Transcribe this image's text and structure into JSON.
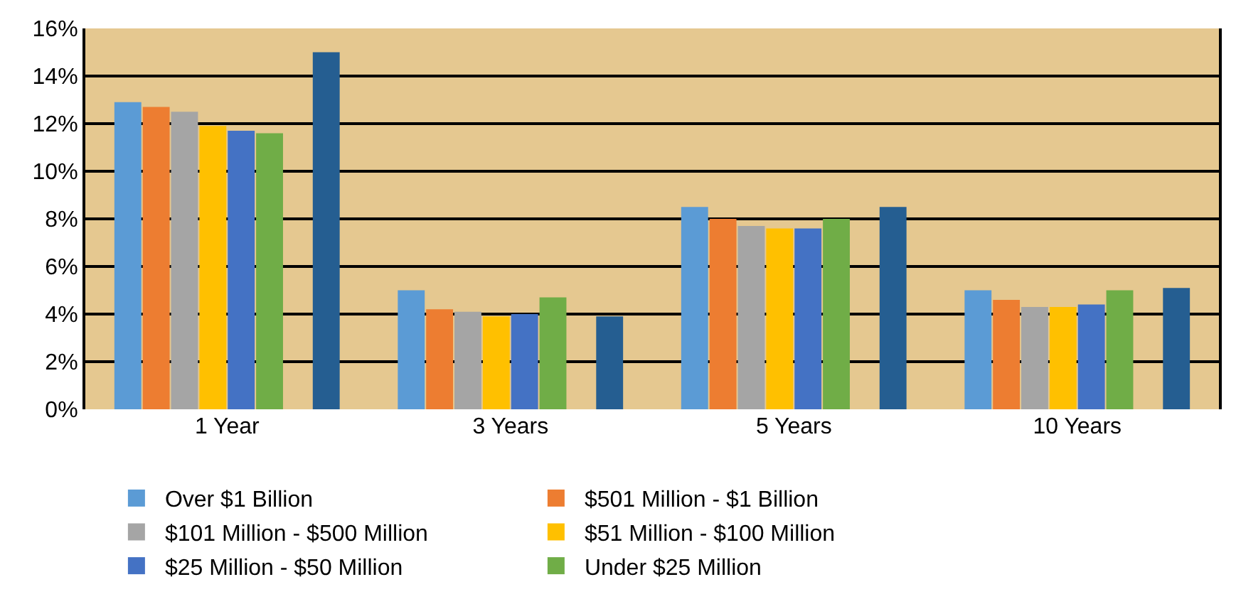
{
  "chart_data": {
    "type": "bar",
    "categories": [
      "1 Year",
      "3 Years",
      "5 Years",
      "10 Years"
    ],
    "series": [
      {
        "name": "Over $1 Billion",
        "color": "#5b9bd5",
        "values": [
          12.9,
          5.0,
          8.5,
          5.0
        ]
      },
      {
        "name": "$501 Million - $1 Billion",
        "color": "#ed7d31",
        "values": [
          12.7,
          4.2,
          8.0,
          4.6
        ]
      },
      {
        "name": "$101 Million - $500 Million",
        "color": "#a5a5a5",
        "values": [
          12.5,
          4.1,
          7.7,
          4.3
        ]
      },
      {
        "name": "$51 Million - $100 Million",
        "color": "#ffc000",
        "values": [
          11.9,
          3.9,
          7.6,
          4.3
        ]
      },
      {
        "name": "$25 Million - $50 Million",
        "color": "#4472c4",
        "values": [
          11.7,
          4.0,
          7.6,
          4.4
        ]
      },
      {
        "name": "Under $25 Million",
        "color": "#70ad47",
        "values": [
          11.6,
          4.7,
          8.0,
          5.0
        ]
      },
      {
        "color": "#f2f2f2",
        "values": [
          0,
          0,
          0,
          0
        ]
      },
      {
        "color": "#255e91",
        "values": [
          15.0,
          3.9,
          8.5,
          5.1
        ]
      }
    ],
    "ylim": [
      0,
      16
    ],
    "yticks": [
      {
        "value": 0,
        "label": "0%"
      },
      {
        "value": 2,
        "label": "2%"
      },
      {
        "value": 4,
        "label": "4%"
      },
      {
        "value": 6,
        "label": "6%"
      },
      {
        "value": 8,
        "label": "8%"
      },
      {
        "value": 10,
        "label": "10%"
      },
      {
        "value": 12,
        "label": "12%"
      },
      {
        "value": 14,
        "label": "14%"
      },
      {
        "value": 16,
        "label": "16%"
      }
    ],
    "grid": "y",
    "legend": "bottom"
  }
}
